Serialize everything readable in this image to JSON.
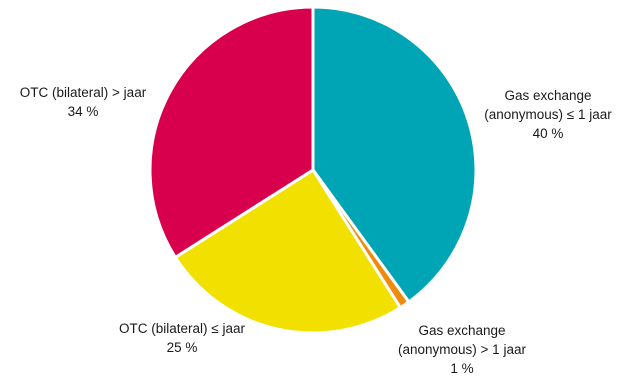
{
  "chart_data": {
    "type": "pie",
    "title": "",
    "start_angle_deg": 0,
    "direction": "clockwise",
    "slices": [
      {
        "label_lines": [
          "Gas exchange",
          "(anonymous) ≤ 1 jaar"
        ],
        "value": 40,
        "value_label": "40 %",
        "color": "#00A5B5"
      },
      {
        "label_lines": [
          "Gas exchange",
          "(anonymous) > 1 jaar"
        ],
        "value": 1,
        "value_label": "1 %",
        "color": "#F08A0A"
      },
      {
        "label_lines": [
          "OTC (bilateral) ≤ jaar"
        ],
        "value": 25,
        "value_label": "25 %",
        "color": "#F2E000"
      },
      {
        "label_lines": [
          "OTC (bilateral) > jaar"
        ],
        "value": 34,
        "value_label": "34 %",
        "color": "#D8004C"
      }
    ]
  }
}
